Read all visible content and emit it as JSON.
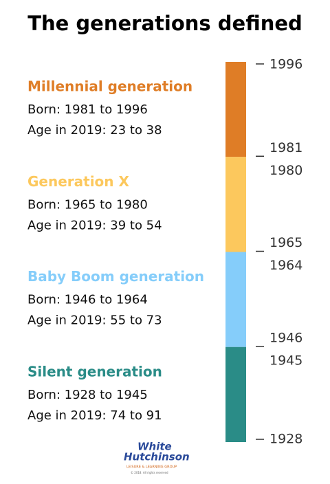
{
  "header": {
    "title": "The generations defined"
  },
  "generations": [
    {
      "name": "Millennial generation",
      "color": "#df7d26",
      "born": "Born: 1981 to 1996",
      "age": "Age in 2019: 23 to 38",
      "end": "1996",
      "start": "1981"
    },
    {
      "name": "Generation X",
      "color": "#fcc85d",
      "born": "Born: 1965 to 1980",
      "age": "Age in 2019: 39 to 54",
      "end": "1980",
      "start": "1965"
    },
    {
      "name": "Baby Boom generation",
      "color": "#85cdfa",
      "born": "Born: 1946 to 1964",
      "age": "Age in 2019: 55 to 73",
      "end": "1964",
      "start": "1946"
    },
    {
      "name": "Silent generation",
      "color": "#2a8c87",
      "born": "Born: 1928 to 1945",
      "age": "Age in 2019: 74 to 91",
      "end": "1945",
      "start": "1928"
    }
  ],
  "logo": {
    "line1": "White",
    "line2": "Hutchinson",
    "tagline": "LEISURE & LEARNING GROUP",
    "copyright": "© 2018. All rights reserved"
  }
}
